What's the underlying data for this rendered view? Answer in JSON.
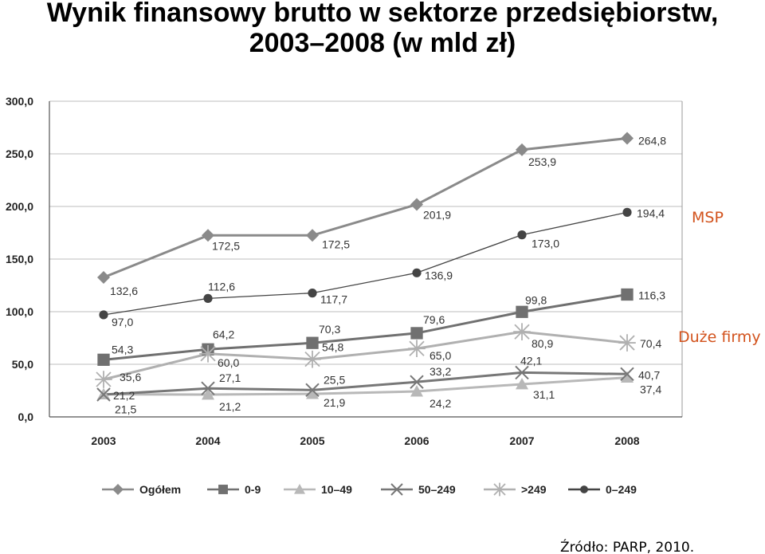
{
  "chart_data": {
    "type": "line",
    "title_line_1": "Wynik finansowy brutto w sektorze przedsiębiorstw,",
    "title_line_2": "2003–2008 (w mld zł)",
    "categories": [
      "2003",
      "2004",
      "2005",
      "2006",
      "2007",
      "2008"
    ],
    "ylim": [
      0,
      300
    ],
    "y_ticks": [
      "0,0",
      "50,0",
      "100,0",
      "150,0",
      "200,0",
      "250,0",
      "300,0"
    ],
    "grid": true,
    "legend_position": "bottom",
    "series": [
      {
        "name": "Ogółem",
        "values": [
          132.6,
          172.5,
          172.5,
          201.9,
          253.9,
          264.8
        ],
        "labels": [
          "132,6",
          "172,5",
          "172,5",
          "201,9",
          "253,9",
          "264,8"
        ],
        "color": "#8a8a8a",
        "marker": "diamond"
      },
      {
        "name": "0-9",
        "values": [
          54.3,
          64.2,
          70.3,
          79.6,
          99.8,
          116.3
        ],
        "labels": [
          "54,3",
          "64,2",
          "70,3",
          "79,6",
          "99,8",
          "116,3"
        ],
        "color": "#707070",
        "marker": "square"
      },
      {
        "name": "10–49",
        "values": [
          21.5,
          21.2,
          21.9,
          24.2,
          31.1,
          37.4
        ],
        "labels": [
          "21,5",
          "21,2",
          "21,9",
          "24,2",
          "31,1",
          "37,4"
        ],
        "color": "#b8b8b8",
        "marker": "triangle"
      },
      {
        "name": "50–249",
        "values": [
          21.2,
          27.1,
          25.5,
          33.2,
          42.1,
          40.7
        ],
        "labels": [
          "21,2",
          "27,1",
          "25,5",
          "33,2",
          "42,1",
          "40,7"
        ],
        "color": "#777777",
        "marker": "x"
      },
      {
        "name": ">249",
        "values": [
          35.6,
          60.0,
          54.8,
          65.0,
          80.9,
          70.4
        ],
        "labels": [
          "35,6",
          "60,0",
          "54,8",
          "65,0",
          "80,9",
          "70,4"
        ],
        "color": "#b0b0b0",
        "marker": "star"
      },
      {
        "name": "0–249",
        "values": [
          97.0,
          112.6,
          117.7,
          136.9,
          173.0,
          194.4
        ],
        "labels": [
          "97,0",
          "112,6",
          "117,7",
          "136,9",
          "173,0",
          "194,4"
        ],
        "color": "#444444",
        "marker": "circle"
      }
    ],
    "annotations": [
      {
        "text": "MSP",
        "color": "#d2521c"
      },
      {
        "text": "Duże firmy",
        "color": "#d2521c"
      }
    ]
  },
  "source": "Źródło: PARP, 2010."
}
